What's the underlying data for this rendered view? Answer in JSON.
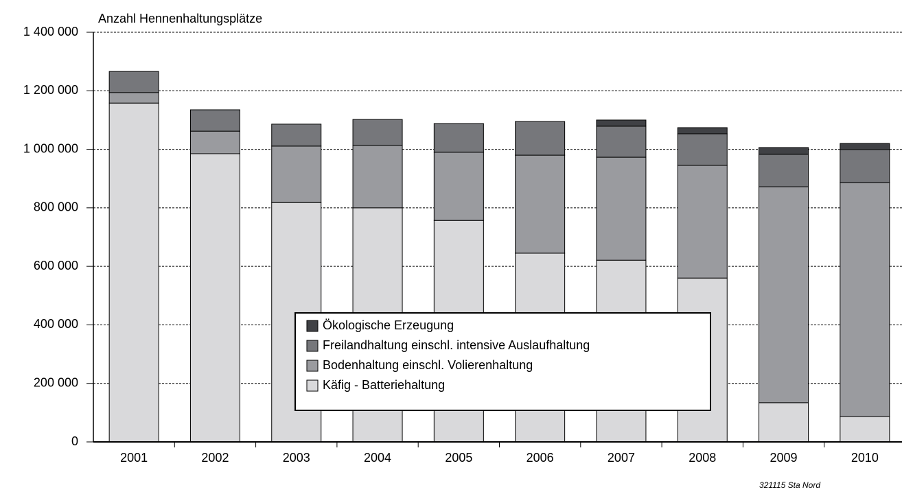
{
  "chart_data": {
    "type": "stacked_bar",
    "y_axis_label": "Anzahl Hennenhaltungsplätze",
    "source": "321115 Sta Nord",
    "categories": [
      "2001",
      "2002",
      "2003",
      "2004",
      "2005",
      "2006",
      "2007",
      "2008",
      "2009",
      "2010"
    ],
    "series": [
      {
        "name": "Käfig - Batteriehaltung",
        "color": "#d9d9db",
        "values": [
          1158000,
          985000,
          818000,
          800000,
          757000,
          645000,
          621000,
          560000,
          134000,
          87000
        ]
      },
      {
        "name": "Bodenhaltung einschl. Volierenhaltung",
        "color": "#9a9b9f",
        "values": [
          36000,
          77000,
          193000,
          213000,
          233000,
          335000,
          352000,
          385000,
          738000,
          799000
        ]
      },
      {
        "name": "Freilandhaltung einschl. intensive Auslaufhaltung",
        "color": "#76777b",
        "values": [
          72000,
          73000,
          75000,
          89000,
          98000,
          115000,
          106000,
          108000,
          111000,
          113000
        ]
      },
      {
        "name": "Ökologische Erzeugung",
        "color": "#404145",
        "values": [
          0,
          0,
          0,
          0,
          0,
          0,
          21000,
          21000,
          23000,
          21000
        ]
      }
    ],
    "ylim": [
      0,
      1400000
    ],
    "yticks": [
      0,
      {
        "value": 200000,
        "label": "200 000"
      },
      {
        "value": 400000,
        "label": "400 000"
      },
      {
        "value": 600000,
        "label": "600 000"
      },
      {
        "value": 800000,
        "label": "800 000"
      },
      {
        "value": 1000000,
        "label": "1 000 000"
      },
      {
        "value": 1200000,
        "label": "1 200 000"
      },
      {
        "value": 1400000,
        "label": "1 400 000"
      }
    ],
    "grid": true
  }
}
